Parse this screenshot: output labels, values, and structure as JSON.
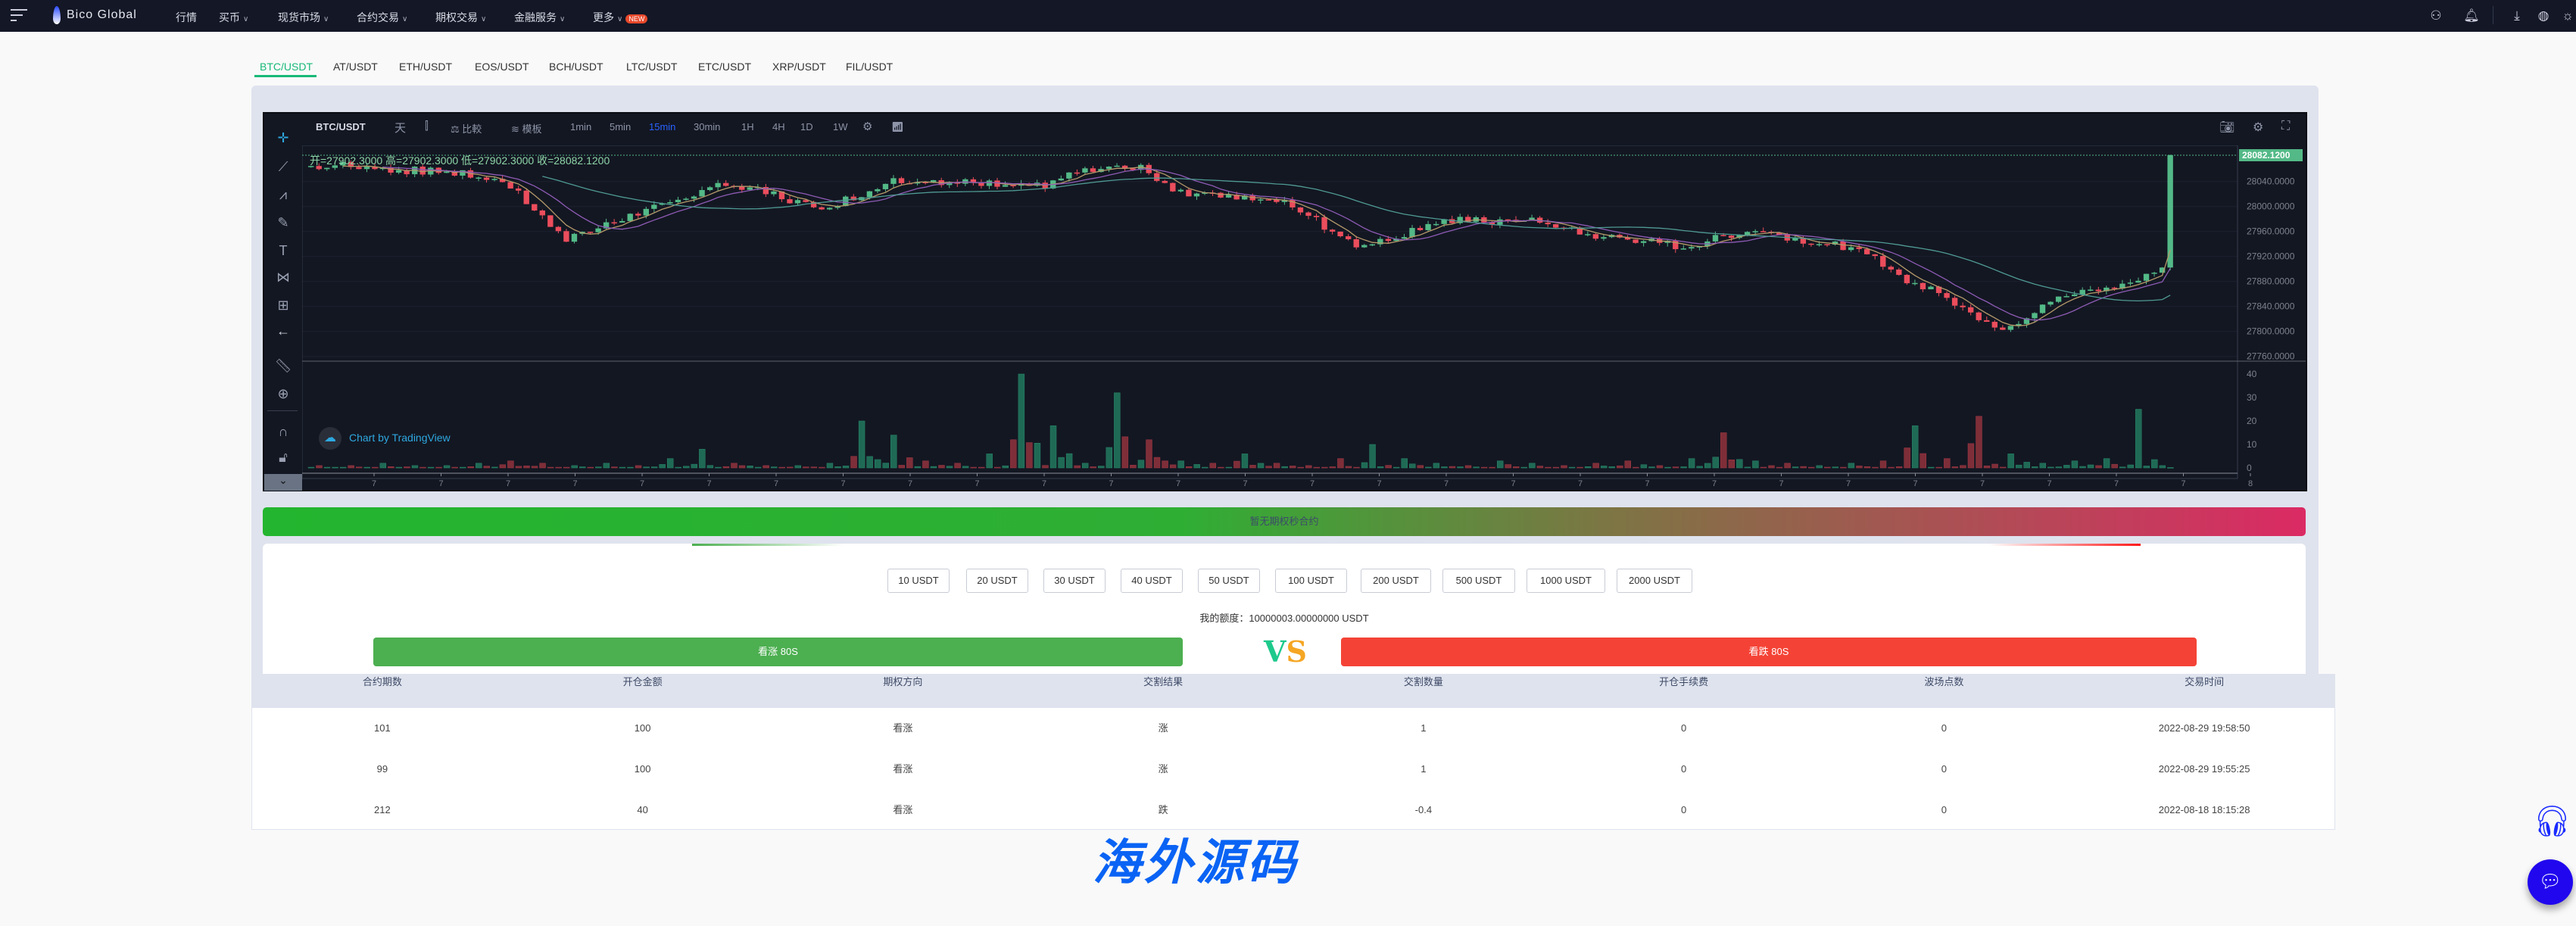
{
  "nav": {
    "logo": "Bico Global",
    "items": [
      {
        "label": "行情",
        "dropdown": false
      },
      {
        "label": "买币",
        "dropdown": true
      },
      {
        "label": "现货市场",
        "dropdown": true
      },
      {
        "label": "合约交易",
        "dropdown": true
      },
      {
        "label": "期权交易",
        "dropdown": true
      },
      {
        "label": "金融服务",
        "dropdown": true
      },
      {
        "label": "更多",
        "dropdown": true
      }
    ],
    "new_badge": "NEW",
    "right_icons": [
      "user-icon",
      "bell-icon",
      "download-icon",
      "globe-icon",
      "sun-icon"
    ]
  },
  "pairs": {
    "active": 0,
    "items": [
      "BTC/USDT",
      "AT/USDT",
      "ETH/USDT",
      "EOS/USDT",
      "BCH/USDT",
      "LTC/USDT",
      "ETC/USDT",
      "XRP/USDT",
      "FIL/USDT"
    ]
  },
  "chart": {
    "symbol": "BTC/USDT",
    "day": "天",
    "compare": "比較",
    "template": "模板",
    "intervals": [
      "1min",
      "5min",
      "15min",
      "30min",
      "1H",
      "4H",
      "1D",
      "1W"
    ],
    "active_interval": "15min",
    "ohlc": "开=27902.3000  高=27902.3000  低=27902.3000  收=28082.1200",
    "last_price": "28082.1200",
    "price_ticks": [
      "28040.0000",
      "28000.0000",
      "27960.0000",
      "27920.0000",
      "27880.0000",
      "27840.0000",
      "27800.0000",
      "27760.0000"
    ],
    "volume_ticks": [
      "40",
      "30",
      "20",
      "10",
      "0"
    ],
    "x_ticks": [
      "7",
      "7",
      "7",
      "7",
      "7",
      "7",
      "7",
      "7",
      "7",
      "7",
      "7",
      "7",
      "7",
      "7",
      "7",
      "7",
      "7",
      "7",
      "7",
      "7",
      "7",
      "7",
      "7",
      "7",
      "7",
      "7",
      "7",
      "7",
      "8"
    ],
    "watermark": "Chart by TradingView",
    "colors": {
      "up": "#53b987",
      "down": "#eb4d5c",
      "vol_up": "#1f6a55",
      "vol_down": "#7e2e38",
      "accent": "#2962ff"
    }
  },
  "chart_data": {
    "type": "candlestick",
    "ylim": [
      27760,
      28082.12
    ],
    "closes": [
      28065,
      28066,
      28060,
      28058,
      28055,
      28050,
      28045,
      27995,
      27950,
      27965,
      27985,
      28000,
      28020,
      28035,
      28030,
      28010,
      28000,
      28015,
      28040,
      28045,
      28040,
      28035,
      28040,
      28030,
      28055,
      28058,
      28060,
      28025,
      28020,
      28018,
      28015,
      27995,
      27960,
      27935,
      27950,
      27975,
      27978,
      27975,
      27980,
      27965,
      27955,
      27950,
      27945,
      27935,
      27950,
      27962,
      27955,
      27945,
      27935,
      27915,
      27880,
      27865,
      27830,
      27805,
      27830,
      27860,
      27870,
      27875,
      27902.3,
      28082.12
    ],
    "volumes": [
      1,
      1,
      2,
      1,
      1,
      2,
      3,
      2,
      1,
      2,
      1,
      4,
      8,
      2,
      1,
      1,
      2,
      20,
      14,
      3,
      2,
      6,
      40,
      18,
      2,
      32,
      12,
      3,
      2,
      6,
      2,
      1,
      4,
      10,
      4,
      2,
      1,
      3,
      2,
      1,
      2,
      3,
      1,
      4,
      15,
      3,
      2,
      1,
      2,
      3,
      18,
      4,
      22,
      6,
      2,
      3,
      4,
      25,
      2,
      1
    ]
  },
  "banner": "暂无期权秒合约",
  "amounts": [
    "10 USDT",
    "20 USDT",
    "30 USDT",
    "40 USDT",
    "50 USDT",
    "100 USDT",
    "200 USDT",
    "500 USDT",
    "1000 USDT",
    "2000 USDT"
  ],
  "quota": "我的额度：10000003.00000000 USDT",
  "buy_up": "看涨 80S",
  "buy_down": "看跌 80S",
  "vs_v": "V",
  "vs_s": "S",
  "table": {
    "headers": [
      "合约期数",
      "开仓金额",
      "期权方向",
      "交割结果",
      "交割数量",
      "开仓手续费",
      "波场点数",
      "交易时间"
    ],
    "rows": [
      [
        "101",
        "100",
        "看涨",
        "涨",
        "1",
        "0",
        "0",
        "2022-08-29 19:58:50"
      ],
      [
        "99",
        "100",
        "看涨",
        "涨",
        "1",
        "0",
        "0",
        "2022-08-29 19:55:25"
      ],
      [
        "212",
        "40",
        "看涨",
        "跌",
        "-0.4",
        "0",
        "0",
        "2022-08-18 18:15:28"
      ]
    ]
  },
  "watermark": "海外源码"
}
